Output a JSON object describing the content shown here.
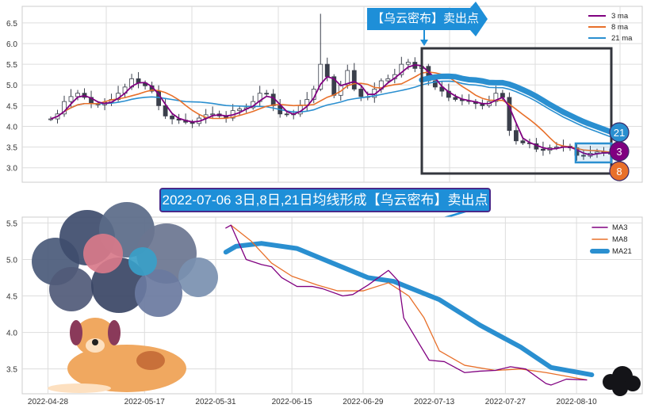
{
  "colors": {
    "ma3": "#800080",
    "ma8": "#e8702a",
    "ma21": "#2a8fd0",
    "candle": "#3a3f4b",
    "banner": "#1e8fd8"
  },
  "annotations": {
    "top_banner": "【乌云密布】卖出点",
    "main_banner": "2022-07-06 3日,8日,21日均线形成【乌云密布】卖出点",
    "badges": [
      "21",
      "3",
      "8"
    ]
  },
  "chart_data": [
    {
      "type": "candlestick",
      "title": "",
      "ylim": [
        2.65,
        6.9
      ],
      "yticks": [
        3.0,
        3.5,
        4.0,
        4.5,
        5.0,
        5.5,
        6.0,
        6.5
      ],
      "grid": true,
      "legend": {
        "placement": "top-right",
        "entries": [
          "3 ma",
          "8 ma",
          "21 ma"
        ]
      },
      "close": [
        4.18,
        4.3,
        4.6,
        4.72,
        4.8,
        4.7,
        4.55,
        4.52,
        4.58,
        4.65,
        4.8,
        4.95,
        5.15,
        5.05,
        4.98,
        4.85,
        4.5,
        4.25,
        4.18,
        4.15,
        4.1,
        4.07,
        4.2,
        4.28,
        4.3,
        4.25,
        4.2,
        4.38,
        4.42,
        4.45,
        4.6,
        4.8,
        4.78,
        4.5,
        4.3,
        4.28,
        4.3,
        4.5,
        4.65,
        4.9,
        5.5,
        5.2,
        4.75,
        5.0,
        5.35,
        4.9,
        4.72,
        4.7,
        4.9,
        5.1,
        5.15,
        5.25,
        5.5,
        5.55,
        5.4,
        5.45,
        5.1,
        4.95,
        4.85,
        4.7,
        4.65,
        4.62,
        4.6,
        4.55,
        4.5,
        4.6,
        4.8,
        4.7,
        3.9,
        3.65,
        3.6,
        3.58,
        3.45,
        3.42,
        3.48,
        3.5,
        3.52,
        3.48,
        3.3,
        3.28,
        3.35,
        3.38,
        3.35,
        3.35
      ]
    },
    {
      "type": "line",
      "title": "",
      "ylim": [
        3.16,
        5.58
      ],
      "yticks": [
        3.5,
        4.0,
        4.5,
        5.0,
        5.5
      ],
      "xticks": [
        "2022-04-28",
        "2022-05-17",
        "2022-05-31",
        "2022-06-15",
        "2022-06-29",
        "2022-07-13",
        "2022-07-27",
        "2022-08-10"
      ],
      "grid": true,
      "legend": {
        "placement": "top-right"
      },
      "series": [
        {
          "name": "MA3",
          "points": [
            [
              "2022-06-02",
              5.43
            ],
            [
              "2022-06-03",
              5.47
            ],
            [
              "2022-06-06",
              5.0
            ],
            [
              "2022-06-09",
              4.93
            ],
            [
              "2022-06-11",
              4.9
            ],
            [
              "2022-06-13",
              4.75
            ],
            [
              "2022-06-16",
              4.63
            ],
            [
              "2022-06-19",
              4.63
            ],
            [
              "2022-06-21",
              4.6
            ],
            [
              "2022-06-25",
              4.5
            ],
            [
              "2022-06-27",
              4.52
            ],
            [
              "2022-06-30",
              4.65
            ],
            [
              "2022-07-04",
              4.85
            ],
            [
              "2022-07-06",
              4.7
            ],
            [
              "2022-07-07",
              4.2
            ],
            [
              "2022-07-10",
              3.85
            ],
            [
              "2022-07-12",
              3.62
            ],
            [
              "2022-07-15",
              3.6
            ],
            [
              "2022-07-19",
              3.45
            ],
            [
              "2022-07-22",
              3.47
            ],
            [
              "2022-07-25",
              3.48
            ],
            [
              "2022-07-28",
              3.53
            ],
            [
              "2022-07-31",
              3.5
            ],
            [
              "2022-08-04",
              3.3
            ],
            [
              "2022-08-05",
              3.28
            ],
            [
              "2022-08-08",
              3.36
            ],
            [
              "2022-08-12",
              3.35
            ]
          ]
        },
        {
          "name": "MA8",
          "points": [
            [
              "2022-06-03",
              5.47
            ],
            [
              "2022-06-07",
              5.25
            ],
            [
              "2022-06-11",
              4.95
            ],
            [
              "2022-06-15",
              4.77
            ],
            [
              "2022-06-20",
              4.65
            ],
            [
              "2022-06-24",
              4.57
            ],
            [
              "2022-06-29",
              4.57
            ],
            [
              "2022-07-04",
              4.68
            ],
            [
              "2022-07-08",
              4.5
            ],
            [
              "2022-07-11",
              4.2
            ],
            [
              "2022-07-14",
              3.75
            ],
            [
              "2022-07-19",
              3.55
            ],
            [
              "2022-07-25",
              3.48
            ],
            [
              "2022-07-30",
              3.5
            ],
            [
              "2022-08-04",
              3.45
            ],
            [
              "2022-08-12",
              3.35
            ]
          ]
        },
        {
          "name": "MA21",
          "points": [
            [
              "2022-06-02",
              5.1
            ],
            [
              "2022-06-04",
              5.18
            ],
            [
              "2022-06-09",
              5.22
            ],
            [
              "2022-06-16",
              5.15
            ],
            [
              "2022-06-23",
              4.95
            ],
            [
              "2022-06-30",
              4.75
            ],
            [
              "2022-07-05",
              4.7
            ],
            [
              "2022-07-14",
              4.45
            ],
            [
              "2022-07-22",
              4.1
            ],
            [
              "2022-07-30",
              3.8
            ],
            [
              "2022-08-05",
              3.52
            ],
            [
              "2022-08-13",
              3.42
            ]
          ]
        }
      ]
    }
  ]
}
